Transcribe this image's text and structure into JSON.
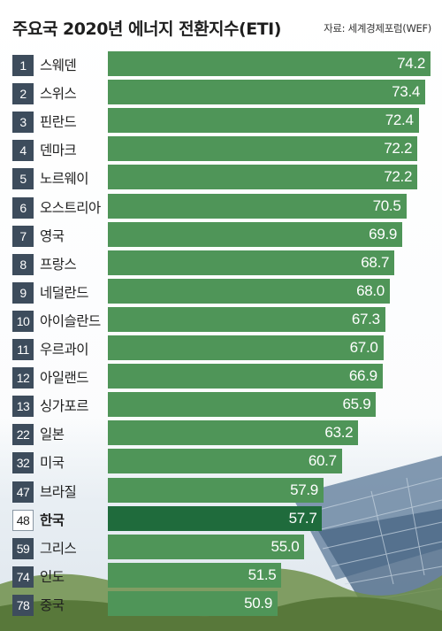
{
  "header": {
    "title": "주요국 2020년 에너지 전환지수(ETI)",
    "source": "자료: 세계경제포럼(WEF)"
  },
  "colors": {
    "bar": "#4f9558",
    "bar_highlight": "#1f6b3c",
    "rank_badge": "#3d4c5c",
    "value_text": "#ffffff"
  },
  "chart_data": {
    "type": "bar",
    "orientation": "horizontal",
    "title": "주요국 2020년 에너지 전환지수(ETI)",
    "categories": [
      "스웨덴",
      "스위스",
      "핀란드",
      "덴마크",
      "노르웨이",
      "오스트리아",
      "영국",
      "프랑스",
      "네덜란드",
      "아이슬란드",
      "우르과이",
      "아일랜드",
      "싱가포르",
      "일본",
      "미국",
      "브라질",
      "한국",
      "그리스",
      "인도",
      "중국"
    ],
    "ranks": [
      "1",
      "2",
      "3",
      "4",
      "5",
      "6",
      "7",
      "8",
      "9",
      "10",
      "11",
      "12",
      "13",
      "22",
      "32",
      "47",
      "48",
      "59",
      "74",
      "78"
    ],
    "values": [
      74.2,
      73.4,
      72.4,
      72.2,
      72.2,
      70.5,
      69.9,
      68.7,
      68.0,
      67.3,
      67.0,
      66.9,
      65.9,
      63.2,
      60.7,
      57.9,
      57.7,
      55.0,
      51.5,
      50.9
    ],
    "value_labels": [
      "74.2",
      "73.4",
      "72.4",
      "72.2",
      "72.2",
      "70.5",
      "69.9",
      "68.7",
      "68.0",
      "67.3",
      "67.0",
      "66.9",
      "65.9",
      "63.2",
      "60.7",
      "57.9",
      "57.7",
      "55.0",
      "51.5",
      "50.9"
    ],
    "highlight": "한국",
    "grid": false,
    "legend": "none"
  }
}
